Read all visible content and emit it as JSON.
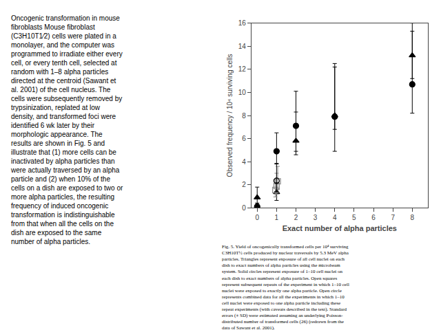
{
  "chart_data": {
    "type": "scatter",
    "xlabel": "Exact number of alpha particles",
    "ylabel": "Observed frequency / 10⁴ surviving cells",
    "xlim": [
      -0.3,
      8.8
    ],
    "ylim": [
      0,
      16
    ],
    "xticks": [
      0,
      1,
      2,
      3,
      4,
      5,
      6,
      7,
      8
    ],
    "yticks": [
      0,
      2,
      4,
      6,
      8,
      10,
      12,
      14,
      16
    ],
    "grid": false,
    "series": [
      {
        "x": [
          0,
          1,
          2,
          4,
          8
        ],
        "values": [
          0.9,
          1.35,
          5.8,
          8.0,
          13.2
        ],
        "error_lo": [
          0.7,
          0.7,
          1.2,
          1.2,
          2.0
        ],
        "error_hi": [
          0.9,
          0.85,
          2.5,
          4.5,
          2.8
        ],
        "color": "#000000",
        "marker": "triangle"
      },
      {
        "x": [
          0,
          1,
          2,
          4,
          8
        ],
        "values": [
          0.12,
          4.9,
          7.1,
          7.9,
          10.7
        ],
        "error_lo": [
          0.12,
          1.1,
          2.2,
          3.0,
          2.5
        ],
        "error_hi": [
          0.3,
          1.6,
          3.0,
          4.3,
          4.6
        ],
        "color": "#000000",
        "marker": "circle"
      },
      {
        "x": [
          0.94,
          1.0,
          1.06
        ],
        "values": [
          1.55,
          1.9,
          2.3
        ],
        "error_lo": [
          0.6,
          0.7,
          0.7
        ],
        "error_hi": [
          0.9,
          1.1,
          1.3
        ],
        "color": "#888888",
        "marker": "open square"
      },
      {
        "x": [
          1
        ],
        "values": [
          2.35
        ],
        "error_lo": [
          0.95
        ],
        "error_hi": [
          1.5
        ],
        "color": "#000000",
        "marker": "open circle"
      }
    ],
    "annotations": [
      "Oncogenic transformation in mouse\nfibroblasts Mouse fibroblast\n(C3H10T1⁄2) cells were plated in a\nmonolayer, and the computer was\nprogrammed to irradiate either every\ncell, or every tenth cell, selected at\nrandom with 1–8 alpha particles\ndirected at the centroid (Sawant et\nal. 2001) of the cell nucleus. The\ncells were subsequently removed by\ntrypsinization, replated at low\ndensity, and transformed foci were\nidentified 6 wk later by their\nmorphologic appearance. The\nresults are shown in Fig. 5 and\nillustrate that (1) more cells can be\ninactivated by alpha particles than\nwere actually traversed by an alpha\nparticle and (2) when 10% of the\ncells on a dish are exposed to two or\nmore alpha particles, the resulting\nfrequency of induced oncogenic\ntransformation is indistinguishable\nfrom that when all the cells on the\ndish are exposed to the same\nnumber of alpha particles.",
      "Fig. 5. Yield of oncogenically transformed cells per 10⁴ surviving\nC3H10T½ cells produced by nuclear traversals by 5.3 MeV alpha\nparticles. Triangles represent exposure of all cell nuclei on each\ndish to exact numbers of alpha particles using the microbeam\nsystem. Solid circles represent exposure of 1–10 cell nuclei on\neach dish to exact numbers of alpha particles. Open squares\nrepresent subsequent repeats of the experiment in which 1–10 cell\nnuclei were exposed to exactly one alpha particle. Open circle\nrepresents combined data for all the experiments in which 1–10\ncell nuclei were exposed to one alpha particle including these\nrepeat experiments (with caveats described in the text). Standard\nerrors (± SD) were estimated assuming an underlying Poisson-\ndistributed number of transformed cells (26) (redrawn from the\ndata of Sawant et al. 2001)."
    ]
  }
}
